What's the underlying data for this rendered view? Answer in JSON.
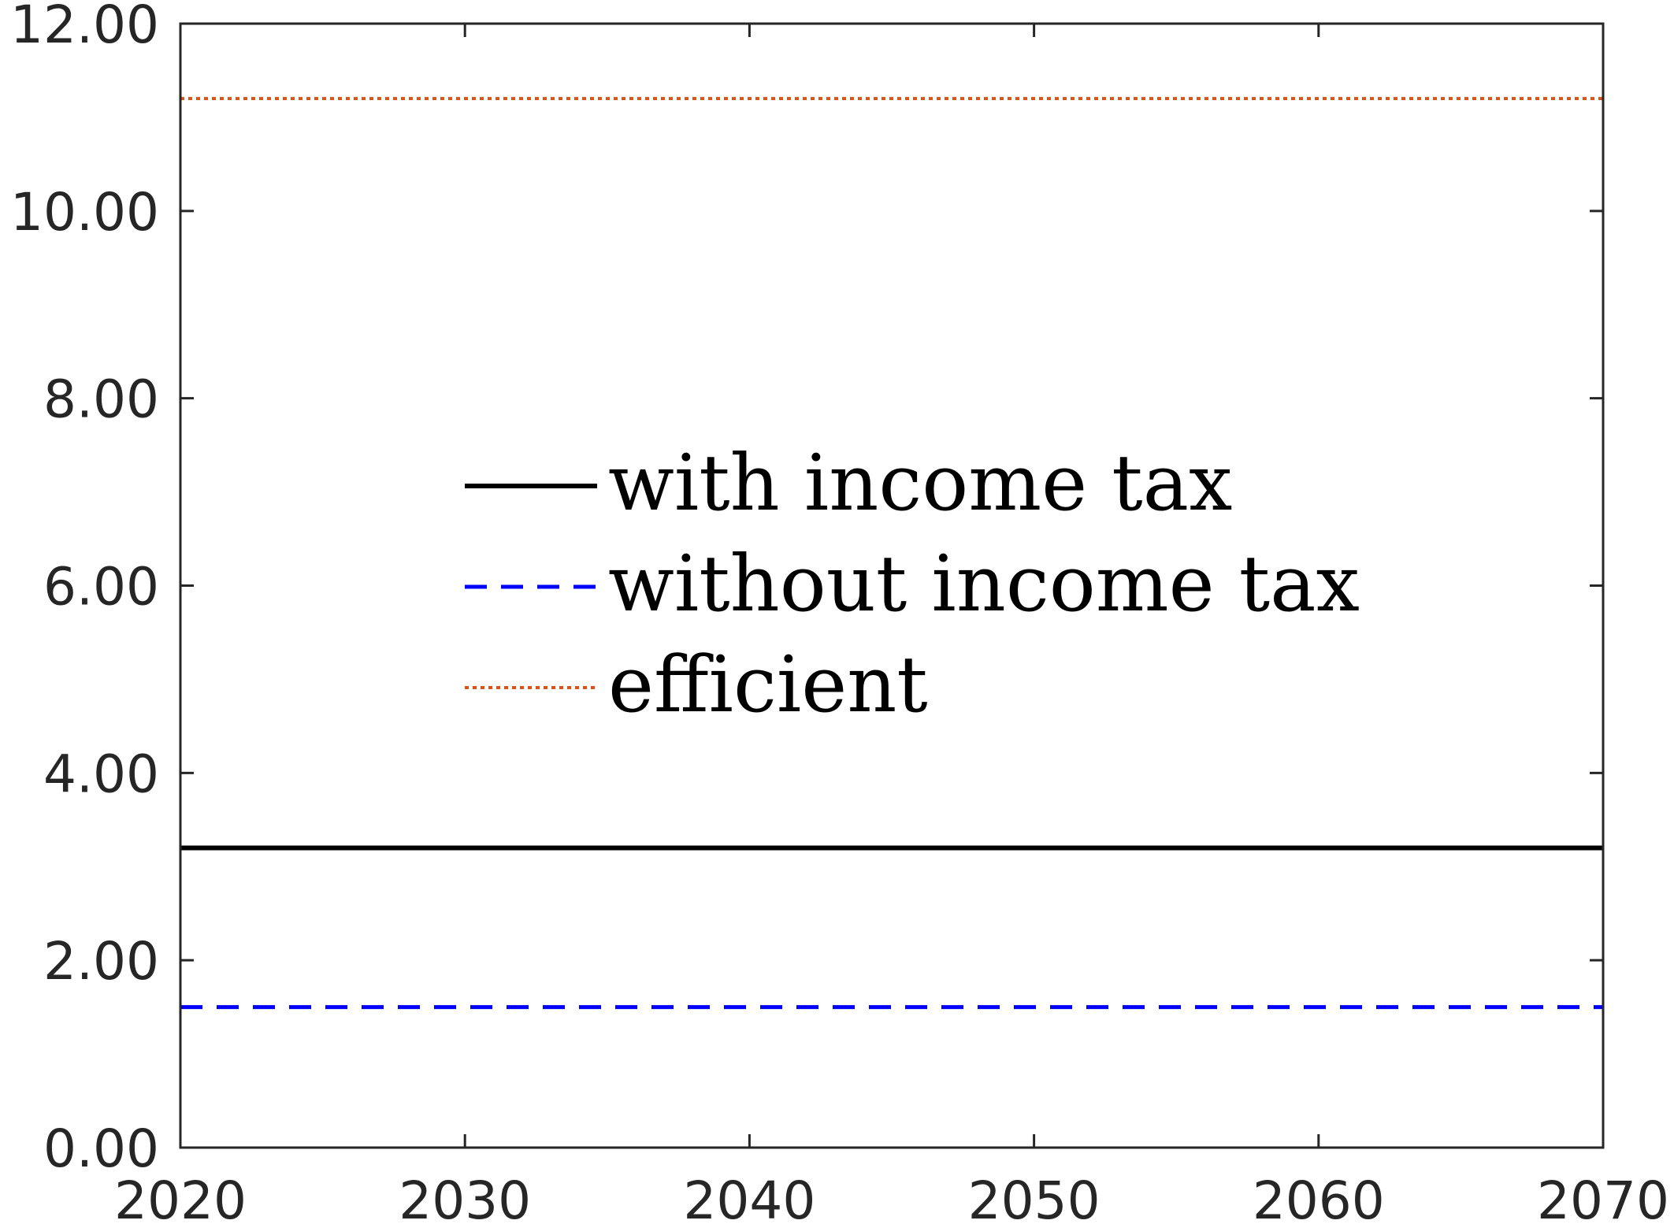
{
  "chart_data": {
    "type": "line",
    "title": "",
    "xlabel": "",
    "ylabel": "",
    "xlim": [
      2020,
      2070
    ],
    "ylim": [
      0,
      12
    ],
    "x_ticks": [
      2020,
      2030,
      2040,
      2050,
      2060,
      2070
    ],
    "x_tick_labels": [
      "2020",
      "2030",
      "2040",
      "2050",
      "2060",
      "2070"
    ],
    "y_ticks": [
      0,
      2,
      4,
      6,
      8,
      10,
      12
    ],
    "y_tick_labels": [
      "0.00",
      "2.00",
      "4.00",
      "6.00",
      "8.00",
      "10.00",
      "12.00"
    ],
    "grid": false,
    "legend_position": "center-left",
    "series": [
      {
        "name": "with income tax",
        "style": "solid",
        "color": "#000000",
        "x": [
          2020,
          2070
        ],
        "y": [
          3.2,
          3.2
        ]
      },
      {
        "name": "without income tax",
        "style": "dashed",
        "color": "#0000ff",
        "x": [
          2020,
          2070
        ],
        "y": [
          1.5,
          1.5
        ]
      },
      {
        "name": "efficient",
        "style": "dotted",
        "color": "#d95319",
        "x": [
          2020,
          2070
        ],
        "y": [
          11.2,
          11.2
        ]
      }
    ]
  }
}
